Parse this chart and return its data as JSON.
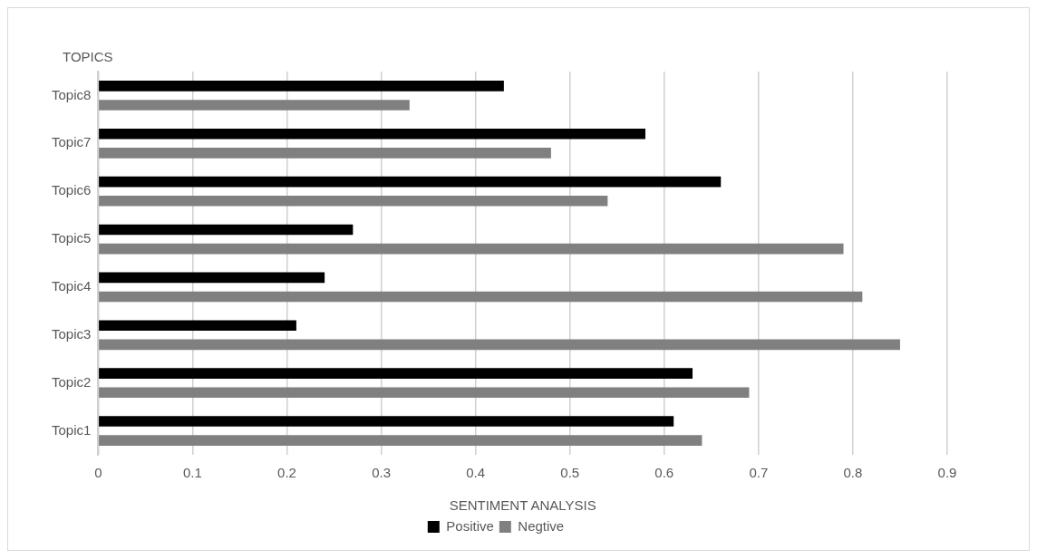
{
  "chart_data": {
    "type": "bar",
    "orientation": "horizontal",
    "categories": [
      "Topic8",
      "Topic7",
      "Topic6",
      "Topic5",
      "Topic4",
      "Topic3",
      "Topic2",
      "Topic1"
    ],
    "series": [
      {
        "name": "Positive",
        "color": "#000000",
        "values": [
          0.43,
          0.58,
          0.66,
          0.27,
          0.24,
          0.21,
          0.63,
          0.61
        ]
      },
      {
        "name": "Negtive",
        "color": "#808080",
        "values": [
          0.33,
          0.48,
          0.54,
          0.79,
          0.81,
          0.85,
          0.69,
          0.64
        ]
      }
    ],
    "xlim": [
      0,
      0.9
    ],
    "xticks": [
      0,
      0.1,
      0.2,
      0.3,
      0.4,
      0.5,
      0.6,
      0.7,
      0.8,
      0.9
    ],
    "xlabel": "SENTIMENT ANALYSIS",
    "ylabel": "TOPICS",
    "grid": "x",
    "legend": "bottom"
  }
}
